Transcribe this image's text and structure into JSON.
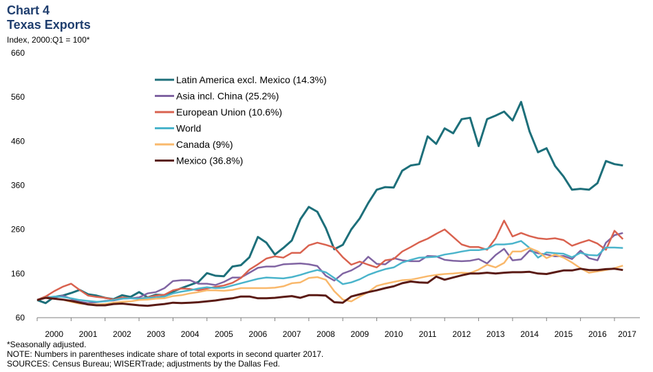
{
  "header": {
    "title": "Chart 4",
    "subtitle": "Texas Exports",
    "unit_label": "Index, 2000:Q1 = 100*"
  },
  "footer": {
    "note1": "*Seasonally adjusted.",
    "note2": "NOTE: Numbers in parentheses indicate share of total exports in second quarter 2017.",
    "note3": "SOURCES: Census Bureau; WISERTrade; adjustments by the Dallas Fed."
  },
  "chart_data": {
    "type": "line",
    "title": "Chart 4 Texas Exports",
    "ylabel": "Index, 2000:Q1 = 100*",
    "ylim": [
      60,
      660
    ],
    "yticks": [
      60,
      160,
      260,
      360,
      460,
      560,
      660
    ],
    "xlim": [
      2000.0,
      2017.75
    ],
    "xticks": [
      "2000",
      "2001",
      "2002",
      "2003",
      "2004",
      "2005",
      "2006",
      "2007",
      "2008",
      "2009",
      "2010",
      "2011",
      "2012",
      "2013",
      "2014",
      "2015",
      "2016",
      "2017"
    ],
    "legend_position": "top-left inside",
    "grid": false,
    "x": [
      2000.0,
      2000.25,
      2000.5,
      2000.75,
      2001.0,
      2001.25,
      2001.5,
      2001.75,
      2002.0,
      2002.25,
      2002.5,
      2002.75,
      2003.0,
      2003.25,
      2003.5,
      2003.75,
      2004.0,
      2004.25,
      2004.5,
      2004.75,
      2005.0,
      2005.25,
      2005.5,
      2005.75,
      2006.0,
      2006.25,
      2006.5,
      2006.75,
      2007.0,
      2007.25,
      2007.5,
      2007.75,
      2008.0,
      2008.25,
      2008.5,
      2008.75,
      2009.0,
      2009.25,
      2009.5,
      2009.75,
      2010.0,
      2010.25,
      2010.5,
      2010.75,
      2011.0,
      2011.25,
      2011.5,
      2011.75,
      2012.0,
      2012.25,
      2012.5,
      2012.75,
      2013.0,
      2013.25,
      2013.5,
      2013.75,
      2014.0,
      2014.25,
      2014.5,
      2014.75,
      2015.0,
      2015.25,
      2015.5,
      2015.75,
      2016.0,
      2016.25,
      2016.5,
      2016.75,
      2017.0,
      2017.25
    ],
    "series": [
      {
        "name": "Latin America excl. Mexico (14.3%)",
        "color": "#1d6f7a",
        "values": [
          100,
          93,
          107,
          110,
          116,
          123,
          113,
          110,
          105,
          102,
          111,
          107,
          118,
          106,
          112,
          111,
          119,
          127,
          134,
          141,
          161,
          155,
          154,
          176,
          179,
          197,
          243,
          230,
          203,
          218,
          235,
          283,
          311,
          300,
          263,
          215,
          225,
          260,
          285,
          320,
          350,
          356,
          355,
          393,
          405,
          408,
          471,
          454,
          489,
          478,
          510,
          513,
          449,
          510,
          518,
          527,
          507,
          549,
          482,
          435,
          444,
          404,
          380,
          350,
          352,
          350,
          365,
          415,
          408,
          405
        ],
        "width": 3
      },
      {
        "name": "Asia incl. China (25.2%)",
        "color": "#8064a2",
        "values": [
          100,
          108,
          105,
          110,
          103,
          96,
          93,
          95,
          98,
          99,
          103,
          104,
          106,
          115,
          118,
          127,
          143,
          145,
          145,
          137,
          137,
          134,
          141,
          151,
          151,
          162,
          173,
          176,
          176,
          181,
          182,
          183,
          181,
          177,
          155,
          144,
          160,
          167,
          178,
          198,
          182,
          181,
          195,
          190,
          188,
          188,
          200,
          199,
          191,
          189,
          188,
          189,
          193,
          183,
          202,
          216,
          190,
          192,
          212,
          206,
          203,
          199,
          200,
          193,
          212,
          195,
          190,
          230,
          247,
          252
        ],
        "width": 2.5
      },
      {
        "name": "European Union (10.6%)",
        "color": "#d9624f",
        "values": [
          100,
          108,
          120,
          130,
          137,
          123,
          110,
          107,
          105,
          101,
          106,
          104,
          103,
          106,
          110,
          112,
          122,
          126,
          125,
          122,
          126,
          130,
          133,
          139,
          150,
          169,
          181,
          194,
          199,
          196,
          207,
          207,
          224,
          230,
          225,
          219,
          197,
          180,
          187,
          180,
          174,
          190,
          193,
          210,
          220,
          231,
          239,
          250,
          260,
          243,
          226,
          220,
          220,
          214,
          240,
          280,
          244,
          252,
          245,
          240,
          238,
          240,
          236,
          223,
          230,
          236,
          228,
          214,
          257,
          238
        ],
        "width": 2.5
      },
      {
        "name": "World",
        "color": "#4ab4cb",
        "values": [
          100,
          105,
          108,
          107,
          104,
          100,
          98,
          96,
          97,
          100,
          103,
          104,
          103,
          105,
          106,
          108,
          115,
          119,
          122,
          126,
          129,
          127,
          128,
          133,
          138,
          143,
          148,
          151,
          150,
          149,
          152,
          157,
          163,
          168,
          163,
          150,
          136,
          140,
          147,
          157,
          164,
          170,
          174,
          185,
          191,
          196,
          197,
          198,
          203,
          206,
          210,
          213,
          213,
          216,
          226,
          226,
          228,
          234,
          218,
          196,
          208,
          206,
          205,
          197,
          207,
          202,
          201,
          219,
          219,
          218
        ],
        "width": 2.5
      },
      {
        "name": "Canada (9%)",
        "color": "#f9b86b",
        "values": [
          100,
          106,
          103,
          101,
          96,
          92,
          91,
          90,
          91,
          94,
          96,
          97,
          100,
          101,
          103,
          104,
          109,
          111,
          115,
          118,
          122,
          122,
          121,
          123,
          127,
          127,
          127,
          127,
          128,
          131,
          138,
          140,
          150,
          152,
          146,
          120,
          101,
          97,
          108,
          118,
          132,
          137,
          141,
          145,
          146,
          150,
          154,
          157,
          159,
          160,
          162,
          161,
          169,
          180,
          174,
          184,
          210,
          210,
          218,
          210,
          195,
          203,
          196,
          185,
          172,
          162,
          165,
          168,
          172,
          178
        ],
        "width": 2.5
      },
      {
        "name": "Mexico (36.8%)",
        "color": "#5a1a14",
        "values": [
          100,
          105,
          103,
          101,
          98,
          94,
          90,
          88,
          88,
          91,
          92,
          90,
          88,
          87,
          89,
          91,
          94,
          93,
          94,
          95,
          97,
          99,
          102,
          104,
          108,
          108,
          104,
          104,
          105,
          107,
          109,
          105,
          111,
          111,
          110,
          95,
          94,
          108,
          113,
          118,
          122,
          127,
          131,
          138,
          142,
          140,
          139,
          153,
          146,
          151,
          156,
          160,
          160,
          162,
          160,
          162,
          163,
          163,
          164,
          160,
          159,
          163,
          167,
          167,
          171,
          168,
          168,
          170,
          171,
          168
        ],
        "width": 3
      }
    ]
  }
}
